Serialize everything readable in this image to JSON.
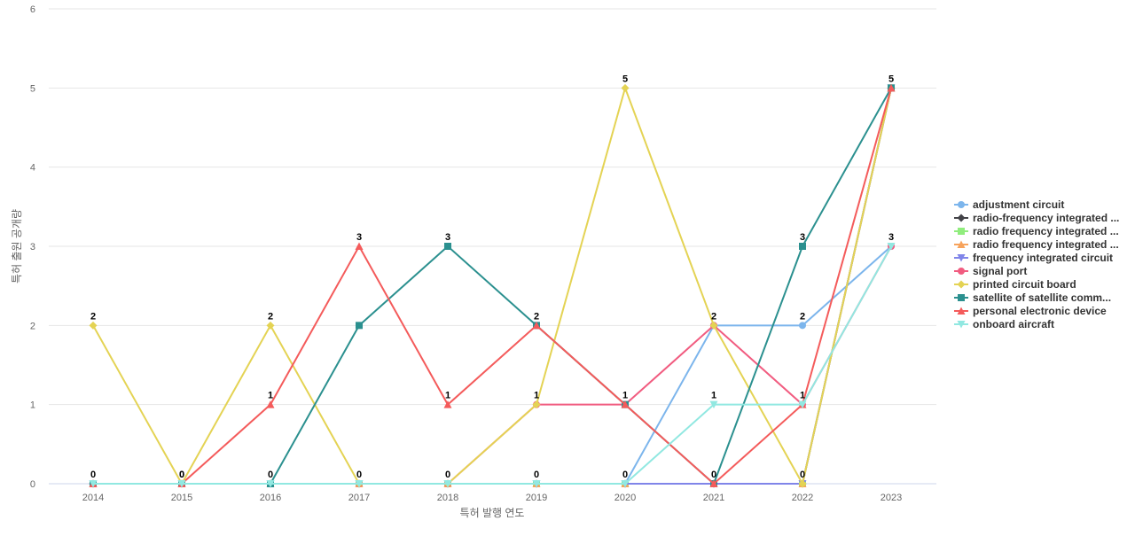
{
  "chart_data": {
    "type": "line",
    "title": "",
    "xlabel": "특허 발행 연도",
    "ylabel": "특허 출원 공개량",
    "x": [
      "2014",
      "2015",
      "2016",
      "2017",
      "2018",
      "2019",
      "2020",
      "2021",
      "2022",
      "2023"
    ],
    "ylim": [
      0,
      6
    ],
    "yticks": [
      0,
      1,
      2,
      3,
      4,
      5,
      6
    ],
    "grid": true,
    "legend_position": "right",
    "series": [
      {
        "name": "adjustment circuit",
        "color": "#7cb5ec",
        "marker": "circle",
        "values": [
          0,
          0,
          0,
          0,
          0,
          0,
          0,
          2,
          2,
          3
        ]
      },
      {
        "name": "radio-frequency integrated ...",
        "color": "#434348",
        "marker": "diamond",
        "values": [
          0,
          0,
          0,
          0,
          0,
          0,
          0,
          0,
          0,
          5
        ]
      },
      {
        "name": "radio frequency integrated ...",
        "color": "#90ed7d",
        "marker": "square",
        "values": [
          0,
          0,
          0,
          0,
          0,
          0,
          0,
          0,
          0,
          5
        ]
      },
      {
        "name": "radio frequency integrated ...",
        "color": "#f7a35c",
        "marker": "triangle",
        "values": [
          0,
          0,
          0,
          0,
          0,
          0,
          0,
          0,
          0,
          5
        ]
      },
      {
        "name": "frequency integrated circuit",
        "color": "#8085e9",
        "marker": "triangle-down",
        "values": [
          0,
          0,
          0,
          0,
          0,
          0,
          0,
          0,
          0,
          5
        ]
      },
      {
        "name": "signal port",
        "color": "#f15c80",
        "marker": "circle",
        "values": [
          0,
          0,
          0,
          0,
          0,
          1,
          1,
          2,
          1,
          3
        ]
      },
      {
        "name": "printed circuit board",
        "color": "#e4d354",
        "marker": "diamond",
        "values": [
          2,
          0,
          2,
          0,
          0,
          1,
          5,
          2,
          0,
          5
        ]
      },
      {
        "name": "satellite of satellite comm...",
        "color": "#2b908f",
        "marker": "square",
        "values": [
          0,
          0,
          0,
          2,
          3,
          2,
          1,
          0,
          3,
          5
        ]
      },
      {
        "name": "personal electronic device",
        "color": "#f45b5b",
        "marker": "triangle",
        "values": [
          0,
          0,
          1,
          3,
          1,
          2,
          1,
          0,
          1,
          5
        ]
      },
      {
        "name": "onboard aircraft",
        "color": "#91e8e1",
        "marker": "triangle-down",
        "values": [
          0,
          0,
          0,
          0,
          0,
          0,
          0,
          1,
          1,
          3
        ]
      }
    ],
    "data_labels": [
      2,
      0,
      2,
      3,
      3,
      2,
      5,
      2,
      3,
      5
    ]
  }
}
